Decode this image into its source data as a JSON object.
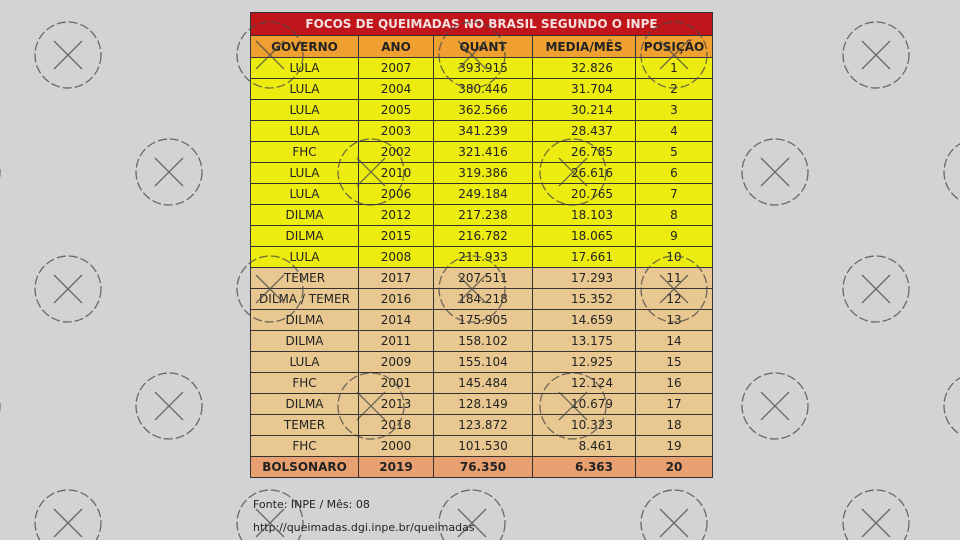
{
  "table": {
    "title": "FOCOS DE QUEIMADAS NO BRASIL SEGUNDO O INPE",
    "header": [
      "GOVERNO",
      "ANO",
      "QUANT",
      "MEDIA/MÊS",
      "POSIÇÃO"
    ],
    "rows": [
      [
        "LULA",
        "2007",
        "393.915",
        "32.826",
        "1"
      ],
      [
        "LULA",
        "2004",
        "380.446",
        "31.704",
        "2"
      ],
      [
        "LULA",
        "2005",
        "362.566",
        "30.214",
        "3"
      ],
      [
        "LULA",
        "2003",
        "341.239",
        "28.437",
        "4"
      ],
      [
        "FHC",
        "2002",
        "321.416",
        "26.785",
        "5"
      ],
      [
        "LULA",
        "2010",
        "319.386",
        "26.616",
        "6"
      ],
      [
        "LULA",
        "2006",
        "249.184",
        "20.765",
        "7"
      ],
      [
        "DILMA",
        "2012",
        "217.238",
        "18.103",
        "8"
      ],
      [
        "DILMA",
        "2015",
        "216.782",
        "18.065",
        "9"
      ],
      [
        "LULA",
        "2008",
        "211.933",
        "17.661",
        "10"
      ],
      [
        "TEMER",
        "2017",
        "207.511",
        "17.293",
        "11"
      ],
      [
        "DILMA / TEMER",
        "2016",
        "184.218",
        "15.352",
        "12"
      ],
      [
        "DILMA",
        "2014",
        "175.905",
        "14.659",
        "13"
      ],
      [
        "DILMA",
        "2011",
        "158.102",
        "13.175",
        "14"
      ],
      [
        "LULA",
        "2009",
        "155.104",
        "12.925",
        "15"
      ],
      [
        "FHC",
        "2001",
        "145.484",
        "12.124",
        "16"
      ],
      [
        "DILMA",
        "2013",
        "128.149",
        "10.679",
        "17"
      ],
      [
        "TEMER",
        "2018",
        "123.872",
        "10.323",
        "18"
      ],
      [
        "FHC",
        "2000",
        "101.530",
        "8.461",
        "19"
      ],
      [
        "BOLSONARO",
        "2019",
        "76.350",
        "6.363",
        "20"
      ]
    ]
  },
  "footer": {
    "source": "Fonte: INPE / Mês: 08",
    "url": "http://queimadas.dgi.inpe.br/queimadas"
  }
}
